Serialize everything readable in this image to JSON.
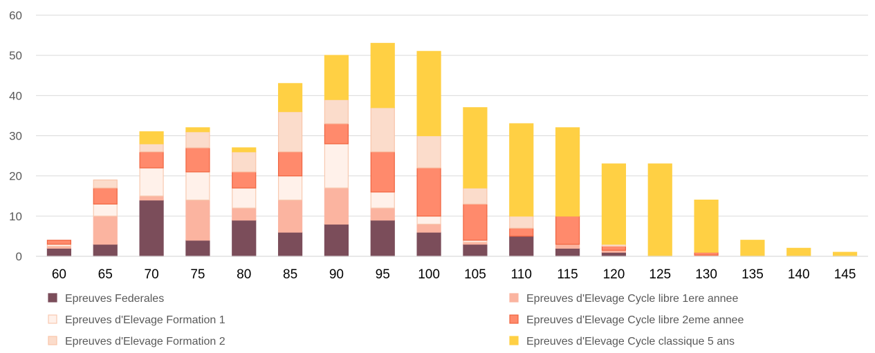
{
  "chart_data": {
    "type": "bar",
    "stacked": true,
    "categories": [
      "60",
      "65",
      "70",
      "75",
      "80",
      "85",
      "90",
      "95",
      "100",
      "105",
      "110",
      "115",
      "120",
      "125",
      "130",
      "135",
      "140",
      "145"
    ],
    "ylim": [
      0,
      60
    ],
    "yticks": [
      0,
      10,
      20,
      30,
      40,
      50,
      60
    ],
    "grid": true,
    "legend_position": "bottom",
    "series": [
      {
        "name": "Epreuves Federales",
        "color": "#7b4d5a",
        "border": "#7b4d5a",
        "values": [
          2,
          3,
          14,
          4,
          9,
          6,
          8,
          9,
          6,
          3,
          5,
          2,
          1,
          0,
          0,
          0,
          0,
          0
        ]
      },
      {
        "name": "Epreuves d'Elevage Cycle libre 1ere annee",
        "color": "#fbb4a0",
        "border": "#fbb4a0",
        "values": [
          0.5,
          7,
          1,
          10,
          3,
          8,
          9,
          3,
          2,
          0.5,
          0,
          1,
          0.5,
          0,
          0.3,
          0,
          0,
          0
        ]
      },
      {
        "name": "Epreuves d'Elevage Formation 1",
        "color": "#fff1ea",
        "border": "#f8c9b0",
        "values": [
          0.5,
          3,
          7,
          7,
          5,
          6,
          11,
          4,
          2,
          0.5,
          0,
          0,
          0,
          0,
          0,
          0,
          0,
          0
        ]
      },
      {
        "name": "Epreuves d'Elevage Cycle libre 2eme annee",
        "color": "#ff8a6c",
        "border": "#f0643f",
        "values": [
          1,
          4,
          4,
          6,
          4,
          6,
          5,
          10,
          12,
          9,
          2,
          7,
          1,
          0,
          0.7,
          0,
          0,
          0
        ]
      },
      {
        "name": "Epreuves d'Elevage Formation 2",
        "color": "#fbdccb",
        "border": "#f9c4a8",
        "values": [
          0,
          2,
          2,
          4,
          5,
          10,
          6,
          11,
          8,
          4,
          3,
          0,
          0.5,
          0,
          0,
          0,
          0,
          0
        ]
      },
      {
        "name": "Epreuves d'Elevage Cycle classique 5 ans",
        "color": "#ffd044",
        "border": "#ffd044",
        "values": [
          0,
          0,
          3,
          1,
          1,
          7,
          11,
          16,
          21,
          20,
          23,
          22,
          20,
          23,
          13,
          4,
          2,
          1
        ]
      }
    ],
    "legend_order": [
      "Epreuves Federales",
      "Epreuves d'Elevage Cycle libre 1ere annee",
      "Epreuves d'Elevage Formation 1",
      "Epreuves d'Elevage Cycle libre 2eme annee",
      "Epreuves d'Elevage Formation 2",
      "Epreuves d'Elevage Cycle classique 5 ans"
    ]
  }
}
